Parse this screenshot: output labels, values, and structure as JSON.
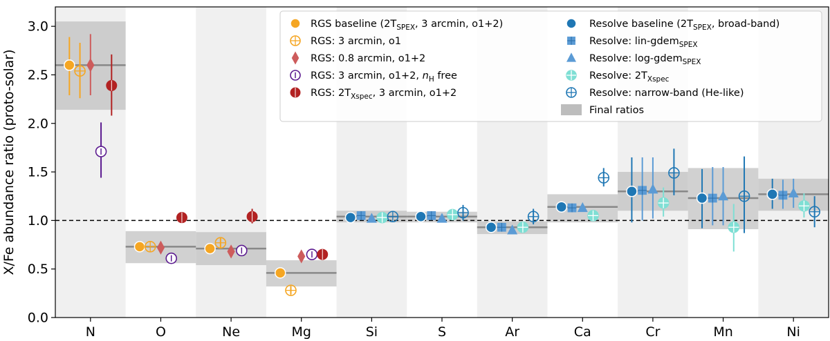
{
  "chart_data": {
    "type": "scatter",
    "ylabel": "X/Fe abundance ratio (proto-solar)",
    "xlabel": "",
    "ylim": [
      0.0,
      3.2
    ],
    "yticks": [
      0.0,
      0.5,
      1.0,
      1.5,
      2.0,
      2.5,
      3.0
    ],
    "ytick_labels": [
      "0.0",
      "0.5",
      "1.0",
      "1.5",
      "2.0",
      "2.5",
      "3.0"
    ],
    "reference_line": 1.0,
    "categories": [
      "N",
      "O",
      "Ne",
      "Mg",
      "Si",
      "S",
      "Ar",
      "Ca",
      "Cr",
      "Mn",
      "Ni"
    ],
    "final_ratios": [
      {
        "element": "N",
        "value": 2.6,
        "low": 2.14,
        "high": 3.05
      },
      {
        "element": "O",
        "value": 0.73,
        "low": 0.56,
        "high": 0.89
      },
      {
        "element": "Ne",
        "value": 0.71,
        "low": 0.54,
        "high": 0.88
      },
      {
        "element": "Mg",
        "value": 0.46,
        "low": 0.32,
        "high": 0.59
      },
      {
        "element": "Si",
        "value": 1.04,
        "low": 0.98,
        "high": 1.1
      },
      {
        "element": "S",
        "value": 1.04,
        "low": 0.98,
        "high": 1.09
      },
      {
        "element": "Ar",
        "value": 0.93,
        "low": 0.86,
        "high": 0.99
      },
      {
        "element": "Ca",
        "value": 1.14,
        "low": 0.98,
        "high": 1.27
      },
      {
        "element": "Cr",
        "value": 1.3,
        "low": 1.1,
        "high": 1.5
      },
      {
        "element": "Mn",
        "value": 1.23,
        "low": 0.91,
        "high": 1.54
      },
      {
        "element": "Ni",
        "value": 1.27,
        "low": 1.1,
        "high": 1.43
      }
    ],
    "series": [
      {
        "name": "RGS baseline (2T_SPEX, 3 arcmin, o1+2)",
        "color": "#f5a623",
        "marker": "circle-filled",
        "offset": -0.3,
        "points": [
          [
            "N",
            2.6,
            2.29,
            2.89
          ],
          [
            "O",
            0.73,
            null,
            null
          ],
          [
            "Ne",
            0.71,
            null,
            null
          ],
          [
            "Mg",
            0.46,
            null,
            null
          ]
        ]
      },
      {
        "name": "RGS: 3 arcmin, o1",
        "color": "#f5a623",
        "marker": "circle-plus",
        "offset": -0.15,
        "points": [
          [
            "N",
            2.54,
            2.26,
            2.83
          ],
          [
            "O",
            0.73,
            null,
            null
          ],
          [
            "Ne",
            0.77,
            0.71,
            0.82
          ],
          [
            "Mg",
            0.28,
            0.24,
            0.32
          ]
        ]
      },
      {
        "name": "RGS: 0.8 arcmin, o1+2",
        "color": "#cd5c5c",
        "marker": "diamond",
        "offset": 0.0,
        "points": [
          [
            "N",
            2.6,
            2.29,
            2.92
          ],
          [
            "O",
            0.72,
            null,
            null
          ],
          [
            "Ne",
            0.68,
            null,
            null
          ],
          [
            "Mg",
            0.63,
            null,
            null
          ]
        ]
      },
      {
        "name": "RGS: 3 arcmin, o1+2, nH free",
        "color": "#5b1a8f",
        "marker": "circle-open-bar",
        "offset": 0.15,
        "points": [
          [
            "N",
            1.71,
            1.44,
            2.01
          ],
          [
            "O",
            0.61,
            null,
            null
          ],
          [
            "Ne",
            0.69,
            null,
            null
          ],
          [
            "Mg",
            0.65,
            null,
            null
          ]
        ]
      },
      {
        "name": "RGS: 2T_Xspec, 3 arcmin, o1+2",
        "color": "#b22222",
        "marker": "circle-half",
        "offset": 0.3,
        "points": [
          [
            "N",
            2.39,
            2.08,
            2.71
          ],
          [
            "O",
            1.03,
            null,
            null
          ],
          [
            "Ne",
            1.04,
            0.97,
            1.12
          ],
          [
            "Mg",
            0.65,
            null,
            null
          ]
        ]
      },
      {
        "name": "Resolve baseline (2T_SPEX, broad-band)",
        "color": "#1f77b4",
        "marker": "circle-filled",
        "offset": -0.3,
        "points": [
          [
            "Si",
            1.03,
            null,
            null
          ],
          [
            "S",
            1.04,
            null,
            null
          ],
          [
            "Ar",
            0.93,
            null,
            null
          ],
          [
            "Ca",
            1.14,
            null,
            null
          ],
          [
            "Cr",
            1.3,
            0.98,
            1.65
          ],
          [
            "Mn",
            1.23,
            0.92,
            1.53
          ],
          [
            "Ni",
            1.27,
            1.12,
            1.43
          ]
        ]
      },
      {
        "name": "Resolve: lin-gdem_SPEX",
        "color": "#5b9bd5",
        "marker": "square",
        "offset": -0.15,
        "points": [
          [
            "Si",
            1.05,
            null,
            null
          ],
          [
            "S",
            1.05,
            null,
            null
          ],
          [
            "Ar",
            0.93,
            null,
            null
          ],
          [
            "Ca",
            1.13,
            null,
            null
          ],
          [
            "Cr",
            1.31,
            1.0,
            1.65
          ],
          [
            "Mn",
            1.23,
            0.95,
            1.55
          ],
          [
            "Ni",
            1.26,
            1.12,
            1.42
          ]
        ]
      },
      {
        "name": "Resolve: log-gdem_SPEX",
        "color": "#5b9bd5",
        "marker": "triangle",
        "offset": 0.0,
        "points": [
          [
            "Si",
            1.02,
            null,
            null
          ],
          [
            "S",
            1.02,
            null,
            null
          ],
          [
            "Ar",
            0.9,
            null,
            null
          ],
          [
            "Ca",
            1.13,
            null,
            null
          ],
          [
            "Cr",
            1.32,
            1.02,
            1.65
          ],
          [
            "Mn",
            1.25,
            0.95,
            1.55
          ],
          [
            "Ni",
            1.28,
            1.13,
            1.43
          ]
        ]
      },
      {
        "name": "Resolve: 2T_Xspec",
        "color": "#7fdfd4",
        "marker": "circle-plus-filled",
        "offset": 0.15,
        "points": [
          [
            "Si",
            1.03,
            null,
            null
          ],
          [
            "S",
            1.06,
            null,
            null
          ],
          [
            "Ar",
            0.93,
            null,
            null
          ],
          [
            "Ca",
            1.05,
            null,
            null
          ],
          [
            "Cr",
            1.18,
            1.04,
            1.34
          ],
          [
            "Mn",
            0.93,
            0.68,
            1.17
          ],
          [
            "Ni",
            1.15,
            1.03,
            1.28
          ]
        ]
      },
      {
        "name": "Resolve: narrow-band (He-like)",
        "color": "#1f77b4",
        "marker": "circle-plus",
        "offset": 0.3,
        "points": [
          [
            "Si",
            1.04,
            null,
            null
          ],
          [
            "S",
            1.08,
            1.0,
            1.16
          ],
          [
            "Ar",
            1.04,
            0.96,
            1.12
          ],
          [
            "Ca",
            1.44,
            1.35,
            1.54
          ],
          [
            "Cr",
            1.49,
            1.26,
            1.74
          ],
          [
            "Mn",
            1.25,
            0.87,
            1.66
          ],
          [
            "Ni",
            1.09,
            0.93,
            1.25
          ]
        ]
      }
    ]
  },
  "legend": {
    "left": [
      {
        "label": "RGS baseline (2T",
        "sub": "SPEX",
        "tail": ", 3 arcmin, o1+2)"
      },
      {
        "label": "RGS: 3 arcmin, o1",
        "sub": "",
        "tail": ""
      },
      {
        "label": "RGS: 0.8 arcmin, o1+2",
        "sub": "",
        "tail": ""
      },
      {
        "label": "RGS: 3 arcmin, o1+2, ",
        "italic": "n",
        "sub": "H",
        "tail": " free"
      },
      {
        "label": "RGS: 2T",
        "sub": "Xspec",
        "tail": ", 3 arcmin, o1+2"
      }
    ],
    "right": [
      {
        "label": "Resolve baseline (2T",
        "sub": "SPEX",
        "tail": ", broad-band)"
      },
      {
        "label": "Resolve: lin-gdem",
        "sub": "SPEX",
        "tail": ""
      },
      {
        "label": "Resolve: log-gdem",
        "sub": "SPEX",
        "tail": ""
      },
      {
        "label": "Resolve: 2T",
        "sub": "Xspec",
        "tail": ""
      },
      {
        "label": "Resolve: narrow-band (He-like)",
        "sub": "",
        "tail": ""
      },
      {
        "label": "Final ratios",
        "sub": "",
        "tail": ""
      }
    ]
  }
}
